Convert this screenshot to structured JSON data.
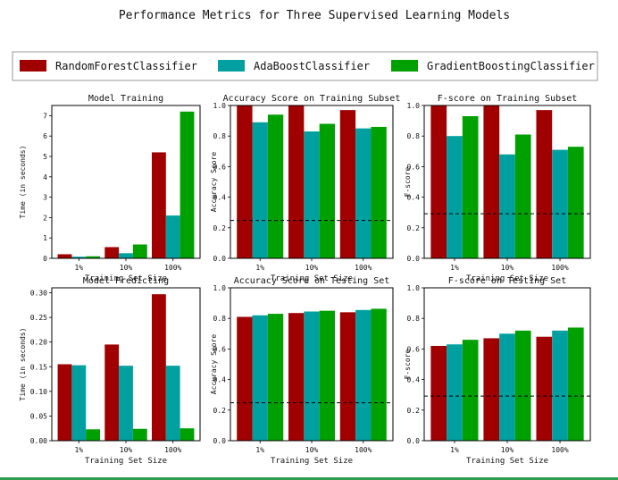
{
  "figure": {
    "title": "Performance Metrics for Three Supervised Learning Models",
    "colors": {
      "RandomForestClassifier": "#a00000",
      "AdaBoostClassifier": "#00a0a0",
      "GradientBoostingClassifier": "#00a000"
    }
  },
  "legend": {
    "placement": "top",
    "entries": [
      "RandomForestClassifier",
      "AdaBoostClassifier",
      "GradientBoostingClassifier"
    ]
  },
  "chart_data": [
    {
      "type": "bar",
      "title": "Model Training",
      "xlabel": "Training Set Size",
      "ylabel": "Time (in seconds)",
      "categories": [
        "1%",
        "10%",
        "100%"
      ],
      "ylim": [
        0,
        7.5
      ],
      "yticks": [
        0,
        1,
        2,
        3,
        4,
        5,
        6,
        7
      ],
      "ytick_labels": [
        "0",
        "1",
        "2",
        "3",
        "4",
        "5",
        "6",
        "7"
      ],
      "series": [
        {
          "name": "RandomForestClassifier",
          "values": [
            0.2,
            0.55,
            5.2
          ]
        },
        {
          "name": "AdaBoostClassifier",
          "values": [
            0.08,
            0.25,
            2.1
          ]
        },
        {
          "name": "GradientBoostingClassifier",
          "values": [
            0.1,
            0.68,
            7.2
          ]
        }
      ],
      "hline": null
    },
    {
      "type": "bar",
      "title": "Accuracy Score on Training Subset",
      "xlabel": "Training Set Size",
      "ylabel": "Accuracy Score",
      "categories": [
        "1%",
        "10%",
        "100%"
      ],
      "ylim": [
        0,
        1
      ],
      "yticks": [
        0,
        0.2,
        0.4,
        0.6,
        0.8,
        1.0
      ],
      "ytick_labels": [
        "0.0",
        "0.2",
        "0.4",
        "0.6",
        "0.8",
        "1.0"
      ],
      "series": [
        {
          "name": "RandomForestClassifier",
          "values": [
            1.0,
            1.0,
            0.97
          ]
        },
        {
          "name": "AdaBoostClassifier",
          "values": [
            0.89,
            0.83,
            0.85
          ]
        },
        {
          "name": "GradientBoostingClassifier",
          "values": [
            0.94,
            0.88,
            0.86
          ]
        }
      ],
      "hline": 0.248
    },
    {
      "type": "bar",
      "title": "F-score on Training Subset",
      "xlabel": "Training Set Size",
      "ylabel": "F-score",
      "categories": [
        "1%",
        "10%",
        "100%"
      ],
      "ylim": [
        0,
        1
      ],
      "yticks": [
        0,
        0.2,
        0.4,
        0.6,
        0.8,
        1.0
      ],
      "ytick_labels": [
        "0.0",
        "0.2",
        "0.4",
        "0.6",
        "0.8",
        "1.0"
      ],
      "series": [
        {
          "name": "RandomForestClassifier",
          "values": [
            1.0,
            1.0,
            0.97
          ]
        },
        {
          "name": "AdaBoostClassifier",
          "values": [
            0.8,
            0.68,
            0.71
          ]
        },
        {
          "name": "GradientBoostingClassifier",
          "values": [
            0.93,
            0.81,
            0.73
          ]
        }
      ],
      "hline": 0.292
    },
    {
      "type": "bar",
      "title": "Model Predicting",
      "xlabel": "Training Set Size",
      "ylabel": "Time (in seconds)",
      "categories": [
        "1%",
        "10%",
        "100%"
      ],
      "ylim": [
        0,
        0.31
      ],
      "yticks": [
        0,
        0.05,
        0.1,
        0.15,
        0.2,
        0.25,
        0.3
      ],
      "ytick_labels": [
        "0.00",
        "0.05",
        "0.10",
        "0.15",
        "0.20",
        "0.25",
        "0.30"
      ],
      "series": [
        {
          "name": "RandomForestClassifier",
          "values": [
            0.155,
            0.195,
            0.297
          ]
        },
        {
          "name": "AdaBoostClassifier",
          "values": [
            0.153,
            0.152,
            0.152
          ]
        },
        {
          "name": "GradientBoostingClassifier",
          "values": [
            0.023,
            0.024,
            0.025
          ]
        }
      ],
      "hline": null
    },
    {
      "type": "bar",
      "title": "Accuracy Score on Testing Set",
      "xlabel": "Training Set Size",
      "ylabel": "Accuracy Score",
      "categories": [
        "1%",
        "10%",
        "100%"
      ],
      "ylim": [
        0,
        1
      ],
      "yticks": [
        0,
        0.2,
        0.4,
        0.6,
        0.8,
        1.0
      ],
      "ytick_labels": [
        "0.0",
        "0.2",
        "0.4",
        "0.6",
        "0.8",
        "1.0"
      ],
      "series": [
        {
          "name": "RandomForestClassifier",
          "values": [
            0.81,
            0.835,
            0.84
          ]
        },
        {
          "name": "AdaBoostClassifier",
          "values": [
            0.82,
            0.845,
            0.855
          ]
        },
        {
          "name": "GradientBoostingClassifier",
          "values": [
            0.83,
            0.85,
            0.863
          ]
        }
      ],
      "hline": 0.248
    },
    {
      "type": "bar",
      "title": "F-score on Testing Set",
      "xlabel": "Training Set Size",
      "ylabel": "F-score",
      "categories": [
        "1%",
        "10%",
        "100%"
      ],
      "ylim": [
        0,
        1
      ],
      "yticks": [
        0,
        0.2,
        0.4,
        0.6,
        0.8,
        1.0
      ],
      "ytick_labels": [
        "0.0",
        "0.2",
        "0.4",
        "0.6",
        "0.8",
        "1.0"
      ],
      "series": [
        {
          "name": "RandomForestClassifier",
          "values": [
            0.62,
            0.67,
            0.68
          ]
        },
        {
          "name": "AdaBoostClassifier",
          "values": [
            0.63,
            0.7,
            0.72
          ]
        },
        {
          "name": "GradientBoostingClassifier",
          "values": [
            0.66,
            0.72,
            0.74
          ]
        }
      ],
      "hline": 0.292
    }
  ]
}
